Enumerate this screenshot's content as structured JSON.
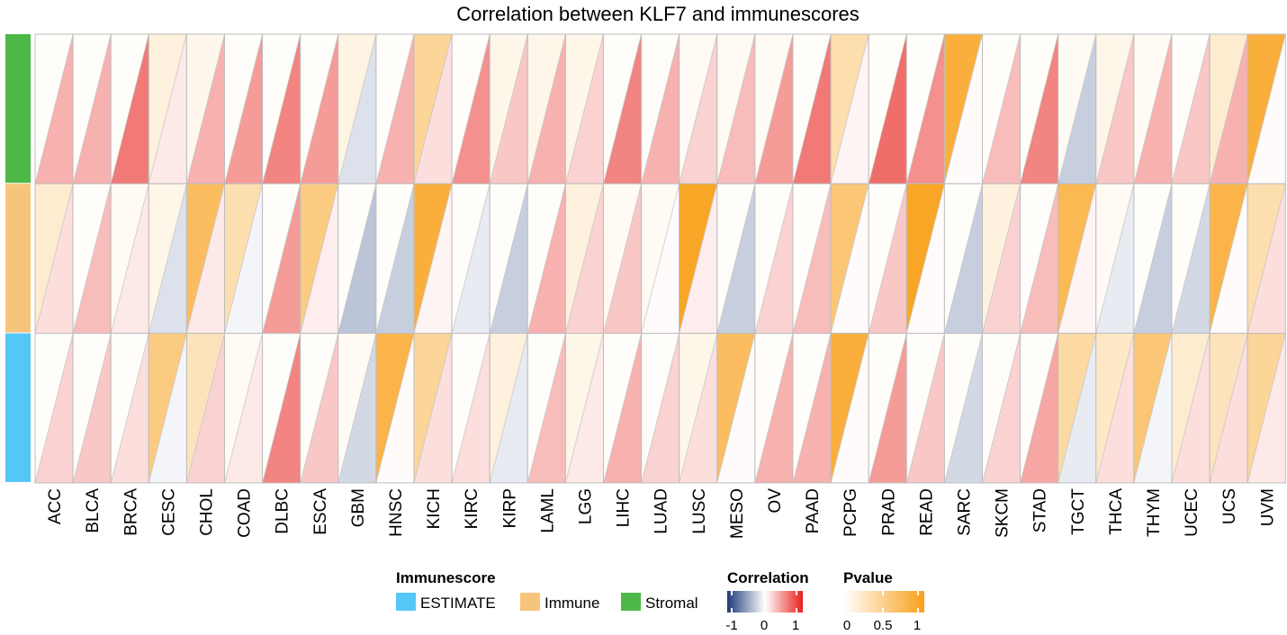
{
  "chart_data": {
    "type": "heatmap",
    "title": "Correlation between KLF7 and immunescores",
    "categories": [
      "ACC",
      "BLCA",
      "BRCA",
      "CESC",
      "CHOL",
      "COAD",
      "DLBC",
      "ESCA",
      "GBM",
      "HNSC",
      "KICH",
      "KIRC",
      "KIRP",
      "LAML",
      "LGG",
      "LIHC",
      "LUAD",
      "LUSC",
      "MESO",
      "OV",
      "PAAD",
      "PCPG",
      "PRAD",
      "READ",
      "SARC",
      "SKCM",
      "STAD",
      "TGCT",
      "THCA",
      "THYM",
      "UCEC",
      "UCS",
      "UVM"
    ],
    "rows": [
      {
        "name": "Stromal",
        "color": "#4DB848",
        "correlation": [
          0.35,
          0.35,
          0.6,
          0.1,
          0.35,
          0.45,
          0.55,
          0.45,
          -0.15,
          0.35,
          0.15,
          0.5,
          0.25,
          0.35,
          0.2,
          0.55,
          0.35,
          0.2,
          0.3,
          0.45,
          0.6,
          0.05,
          0.65,
          0.5,
          0.02,
          0.3,
          0.55,
          -0.25,
          0.25,
          0.35,
          0.25,
          0.35,
          0.02
        ],
        "pvalue": [
          0.02,
          0.02,
          0.02,
          0.15,
          0.08,
          0.02,
          0.02,
          0.02,
          0.12,
          0.02,
          0.45,
          0.02,
          0.1,
          0.1,
          0.1,
          0.02,
          0.02,
          0.05,
          0.05,
          0.05,
          0.02,
          0.35,
          0.02,
          0.02,
          0.85,
          0.02,
          0.02,
          0.05,
          0.1,
          0.05,
          0.02,
          0.2,
          0.85
        ]
      },
      {
        "name": "Immune",
        "color": "#F7C47C",
        "correlation": [
          0.15,
          0.3,
          0.1,
          -0.15,
          0.1,
          -0.05,
          0.45,
          0.08,
          -0.3,
          -0.25,
          0.05,
          -0.1,
          -0.25,
          0.35,
          0.2,
          0.25,
          0.02,
          0.08,
          -0.25,
          0.2,
          0.3,
          0.02,
          0.25,
          0.02,
          -0.25,
          0.2,
          0.3,
          0.05,
          -0.1,
          -0.25,
          -0.2,
          0.02,
          0.15
        ],
        "pvalue": [
          0.2,
          0.02,
          0.05,
          0.1,
          0.7,
          0.35,
          0.02,
          0.55,
          0.02,
          0.02,
          0.85,
          0.02,
          0.02,
          0.02,
          0.15,
          0.05,
          0.05,
          0.95,
          0.02,
          0.02,
          0.02,
          0.6,
          0.02,
          0.95,
          0.02,
          0.15,
          0.02,
          0.75,
          0.05,
          0.02,
          0.02,
          0.8,
          0.35
        ]
      },
      {
        "name": "ESTIMATE",
        "color": "#55C7F7",
        "correlation": [
          0.2,
          0.25,
          0.15,
          -0.05,
          0.2,
          0.1,
          0.55,
          0.25,
          -0.2,
          0.02,
          0.15,
          0.15,
          -0.1,
          0.3,
          0.1,
          0.35,
          0.2,
          0.15,
          0.02,
          0.35,
          0.35,
          0.02,
          0.45,
          0.25,
          -0.2,
          0.2,
          0.4,
          -0.1,
          0.15,
          -0.05,
          0.15,
          0.15,
          0.1
        ],
        "pvalue": [
          0.02,
          0.02,
          0.02,
          0.55,
          0.3,
          0.05,
          0.02,
          0.02,
          0.05,
          0.8,
          0.45,
          0.02,
          0.15,
          0.02,
          0.1,
          0.02,
          0.02,
          0.1,
          0.7,
          0.02,
          0.02,
          0.85,
          0.02,
          0.02,
          0.02,
          0.02,
          0.02,
          0.4,
          0.25,
          0.6,
          0.2,
          0.3,
          0.45
        ]
      }
    ],
    "legend": {
      "immunescore": {
        "title": "Immunescore",
        "items": [
          {
            "label": "ESTIMATE",
            "color": "#55C7F7"
          },
          {
            "label": "Immune",
            "color": "#F7C47C"
          },
          {
            "label": "Stromal",
            "color": "#4DB848"
          }
        ]
      },
      "correlation": {
        "title": "Correlation",
        "ticks": [
          "-1",
          "0",
          "1"
        ],
        "range": [
          -1,
          1
        ],
        "colors": [
          "#1F3A7A",
          "#FFFFFF",
          "#E8201A"
        ]
      },
      "pvalue": {
        "title": "Pvalue",
        "ticks": [
          "0",
          "0.5",
          "1"
        ],
        "range": [
          0,
          1
        ],
        "colors": [
          "#FFFFFF",
          "#F9A11B"
        ]
      }
    },
    "grid": true
  }
}
